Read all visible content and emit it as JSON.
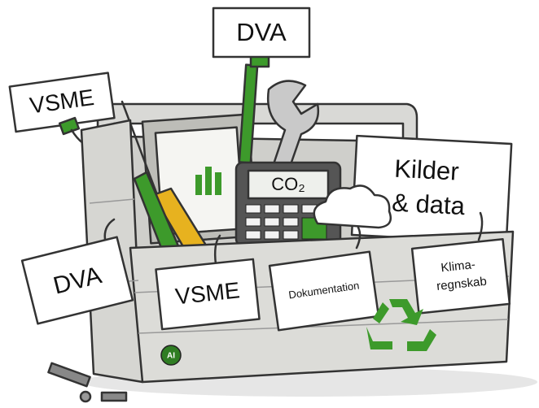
{
  "labels": {
    "top_tag": "DVA",
    "left_tag": "VSME",
    "sources_tag": [
      "Kilder",
      "& data"
    ],
    "calculator": "CO₂",
    "front_tag_left": "DVA",
    "front_tag_middle": "VSME",
    "front_tag_docs": "Dokumentation",
    "front_tag_climate": [
      "Klima-",
      "regnskab"
    ],
    "badge": "AI"
  }
}
